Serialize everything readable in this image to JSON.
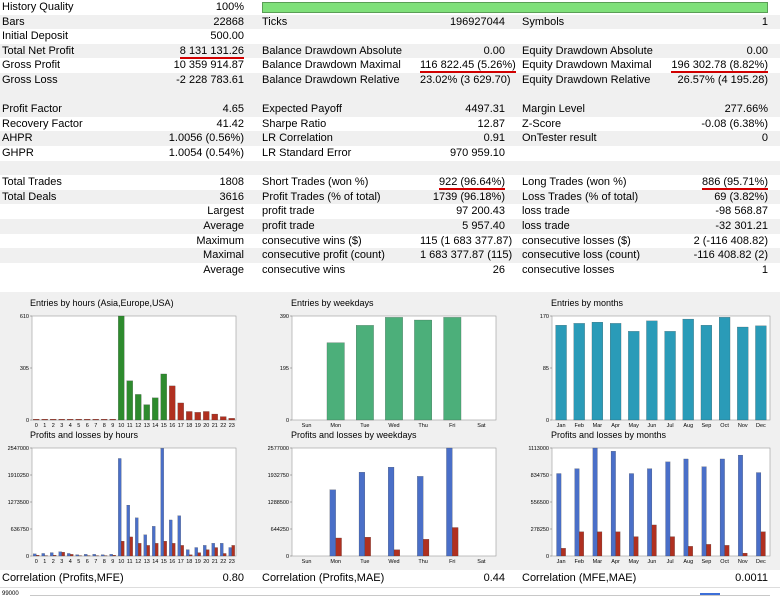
{
  "rows": [
    {
      "l1": "History Quality",
      "v1": "100%",
      "bar": true
    },
    {
      "l1": "Bars",
      "v1": "22868",
      "l2": "Ticks",
      "v2": "196927044",
      "l3": "Symbols",
      "v3": "1"
    },
    {
      "l1": "Initial Deposit",
      "v1": "500.00"
    },
    {
      "l1": "Total Net Profit",
      "v1": "8 131 131.26",
      "l2": "Balance Drawdown Absolute",
      "v2": "0.00",
      "l3": "Equity Drawdown Absolute",
      "v3": "0.00"
    },
    {
      "l1": "Gross Profit",
      "v1": "10 359 914.87",
      "l2": "Balance Drawdown Maximal",
      "v2": "116 822.45 (5.26%)",
      "l3": "Equity Drawdown Maximal",
      "v3": "196 302.78 (8.82%)"
    },
    {
      "l1": "Gross Loss",
      "v1": "-2 228 783.61",
      "l2": "Balance Drawdown Relative",
      "v2": "23.02% (3 629.70)",
      "l3": "Equity Drawdown Relative",
      "v3": "26.57% (4 195.28)"
    },
    {
      "gap": true
    },
    {
      "l1": "Profit Factor",
      "v1": "4.65",
      "l2": "Expected Payoff",
      "v2": "4497.31",
      "l3": "Margin Level",
      "v3": "277.66%"
    },
    {
      "l1": "Recovery Factor",
      "v1": "41.42",
      "l2": "Sharpe Ratio",
      "v2": "12.87",
      "l3": "Z-Score",
      "v3": "-0.08 (6.38%)"
    },
    {
      "l1": "AHPR",
      "v1": "1.0056 (0.56%)",
      "l2": "LR Correlation",
      "v2": "0.91",
      "l3": "OnTester result",
      "v3": "0"
    },
    {
      "l1": "GHPR",
      "v1": "1.0054 (0.54%)",
      "l2": "LR Standard Error",
      "v2": "970 959.10"
    },
    {
      "gap": true
    },
    {
      "l1": "Total Trades",
      "v1": "1808",
      "l2": "Short Trades (won %)",
      "v2": "922 (96.64%)",
      "l3": "Long Trades (won %)",
      "v3": "886 (95.71%)"
    },
    {
      "l1": "Total Deals",
      "v1": "3616",
      "l2": "Profit Trades (% of total)",
      "v2": "1739 (96.18%)",
      "l3": "Loss Trades (% of total)",
      "v3": "69 (3.82%)"
    },
    {
      "r1": "Largest",
      "l2": "profit trade",
      "v2": "97 200.43",
      "l3": "loss trade",
      "v3": "-98 568.87"
    },
    {
      "r1": "Average",
      "l2": "profit trade",
      "v2": "5 957.40",
      "l3": "loss trade",
      "v3": "-32 301.21"
    },
    {
      "r1": "Maximum",
      "l2": "consecutive wins ($)",
      "v2": "115 (1 683 377.87)",
      "l3": "consecutive losses ($)",
      "v3": "2 (-116 408.82)"
    },
    {
      "r1": "Maximal",
      "l2": "consecutive profit (count)",
      "v2": "1 683 377.87 (115)",
      "l3": "consecutive loss (count)",
      "v3": "-116 408.82 (2)"
    },
    {
      "r1": "Average",
      "l2": "consecutive wins",
      "v2": "26",
      "l3": "consecutive losses",
      "v3": "1"
    }
  ],
  "correlation": {
    "l1": "Correlation (Profits,MFE)",
    "v1": "0.80",
    "l2": "Correlation (Profits,MAE)",
    "v2": "0.44",
    "l3": "Correlation (MFE,MAE)",
    "v3": "0.0011"
  },
  "bottom_axis_label": "99000",
  "colors": {
    "underline": "#d10000",
    "quality_bar": "#7fe07a",
    "hours_green": "#2e8b2e",
    "hours_red": "#b03020",
    "weekdays_green": "#4caf7a",
    "months_teal": "#2a9bb8",
    "profit_blue": "#4a6fc8",
    "loss_red": "#b03020"
  },
  "chart_data": [
    {
      "type": "bar",
      "title": "Entries by hours (Asia,Europe,USA)",
      "yticks": [
        "610",
        "305",
        "0"
      ],
      "ylim": [
        0,
        610
      ],
      "categories": [
        "0",
        "1",
        "2",
        "3",
        "4",
        "5",
        "6",
        "7",
        "8",
        "9",
        "10",
        "11",
        "12",
        "13",
        "14",
        "15",
        "16",
        "17",
        "18",
        "19",
        "20",
        "21",
        "22",
        "23"
      ],
      "values": [
        5,
        5,
        5,
        5,
        5,
        5,
        5,
        5,
        5,
        5,
        610,
        230,
        150,
        90,
        130,
        270,
        200,
        100,
        50,
        45,
        50,
        35,
        20,
        10
      ]
    },
    {
      "type": "bar",
      "title": "Entries by weekdays",
      "yticks": [
        "390",
        "195",
        "0"
      ],
      "ylim": [
        0,
        390
      ],
      "categories": [
        "Sun",
        "Mon",
        "Tue",
        "Wed",
        "Thu",
        "Fri",
        "Sat"
      ],
      "values": [
        0,
        290,
        355,
        385,
        375,
        385,
        0
      ]
    },
    {
      "type": "bar",
      "title": "Entries by months",
      "yticks": [
        "170",
        "85",
        "0"
      ],
      "ylim": [
        0,
        170
      ],
      "categories": [
        "Jan",
        "Feb",
        "Mar",
        "Apr",
        "May",
        "Jun",
        "Jul",
        "Aug",
        "Sep",
        "Oct",
        "Nov",
        "Dec"
      ],
      "values": [
        155,
        158,
        160,
        158,
        145,
        162,
        145,
        165,
        155,
        168,
        152,
        154
      ]
    },
    {
      "type": "bar",
      "title": "Profits and losses by hours",
      "yticks": [
        "2547000",
        "1910250",
        "1273500",
        "636750",
        "0"
      ],
      "ylim": [
        0,
        2547000
      ],
      "categories": [
        "0",
        "1",
        "2",
        "3",
        "4",
        "5",
        "6",
        "7",
        "8",
        "9",
        "10",
        "11",
        "12",
        "13",
        "14",
        "15",
        "16",
        "17",
        "18",
        "19",
        "20",
        "21",
        "22",
        "23"
      ],
      "series": [
        {
          "name": "Profits",
          "values": [
            50000,
            60000,
            80000,
            100000,
            60000,
            30000,
            40000,
            40000,
            30000,
            40000,
            2300000,
            1200000,
            900000,
            500000,
            700000,
            2540000,
            850000,
            950000,
            150000,
            200000,
            250000,
            300000,
            300000,
            200000
          ]
        },
        {
          "name": "Losses",
          "values": [
            20000,
            10000,
            20000,
            90000,
            40000,
            10000,
            10000,
            10000,
            10000,
            20000,
            350000,
            450000,
            300000,
            250000,
            300000,
            350000,
            300000,
            250000,
            30000,
            80000,
            150000,
            200000,
            60000,
            250000
          ]
        }
      ]
    },
    {
      "type": "bar",
      "title": "Profits and losses by weekdays",
      "yticks": [
        "2577000",
        "1932750",
        "1288500",
        "644250",
        "0"
      ],
      "ylim": [
        0,
        2577000
      ],
      "categories": [
        "Sun",
        "Mon",
        "Tue",
        "Wed",
        "Thu",
        "Fri",
        "Sat"
      ],
      "series": [
        {
          "name": "Profits",
          "values": [
            0,
            1580000,
            2000000,
            2120000,
            1900000,
            2577000,
            0
          ]
        },
        {
          "name": "Losses",
          "values": [
            0,
            430000,
            450000,
            150000,
            400000,
            680000,
            0
          ]
        }
      ]
    },
    {
      "type": "bar",
      "title": "Profits and losses by months",
      "yticks": [
        "1113000",
        "834750",
        "556500",
        "278250",
        "0"
      ],
      "ylim": [
        0,
        1113000
      ],
      "categories": [
        "Jan",
        "Feb",
        "Mar",
        "Apr",
        "May",
        "Jun",
        "Jul",
        "Aug",
        "Sep",
        "Oct",
        "Nov",
        "Dec"
      ],
      "series": [
        {
          "name": "Profits",
          "values": [
            850000,
            900000,
            1113000,
            1080000,
            850000,
            900000,
            970000,
            1000000,
            920000,
            1000000,
            1040000,
            860000
          ]
        },
        {
          "name": "Losses",
          "values": [
            80000,
            250000,
            250000,
            250000,
            200000,
            320000,
            200000,
            100000,
            120000,
            110000,
            30000,
            250000
          ]
        }
      ]
    }
  ]
}
